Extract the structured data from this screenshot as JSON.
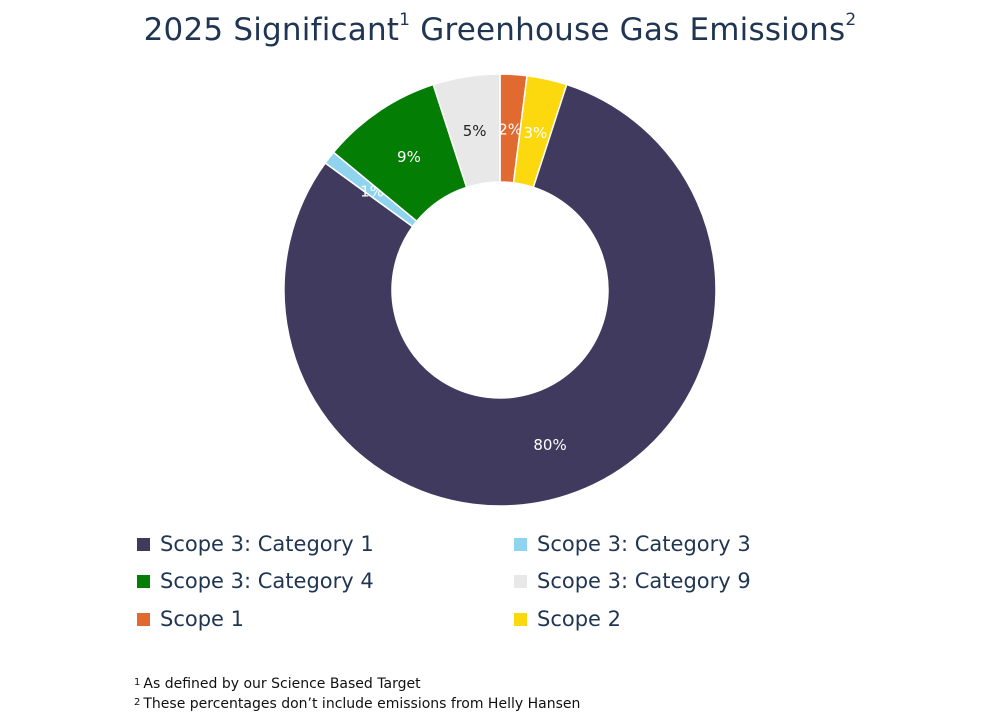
{
  "title": {
    "main": "2025 Significant",
    "sup1": "1",
    "rest": " Greenhouse Gas Emissions",
    "sup2": "2"
  },
  "chart_data": {
    "type": "pie",
    "style": "donut",
    "categories": [
      "Scope 1",
      "Scope 2",
      "Scope 3: Category 1",
      "Scope 3: Category 3",
      "Scope 3: Category 4",
      "Scope 3: Category 9"
    ],
    "values": [
      2,
      3,
      80,
      1,
      9,
      5
    ],
    "value_labels": [
      "2%",
      "3%",
      "80%",
      "1%",
      "9%",
      "5%"
    ],
    "colors": [
      "#e06a2f",
      "#fcd80f",
      "#3f3a5e",
      "#8fd3ee",
      "#047d05",
      "#e8e8e8"
    ],
    "label_colors": [
      "#ffffff",
      "#ffffff",
      "#ffffff",
      "#ffffff",
      "#ffffff",
      "#222222"
    ],
    "legend_placement": "bottom",
    "legend_order": [
      "Scope 3: Category 1",
      "Scope 3: Category 3",
      "Scope 3: Category 4",
      "Scope 3: Category 9",
      "Scope 1",
      "Scope 2"
    ]
  },
  "footnotes": [
    {
      "mark": "1",
      "text": "As defined by our Science Based Target"
    },
    {
      "mark": "2",
      "text": "These percentages don’t include emissions from Helly Hansen"
    }
  ]
}
